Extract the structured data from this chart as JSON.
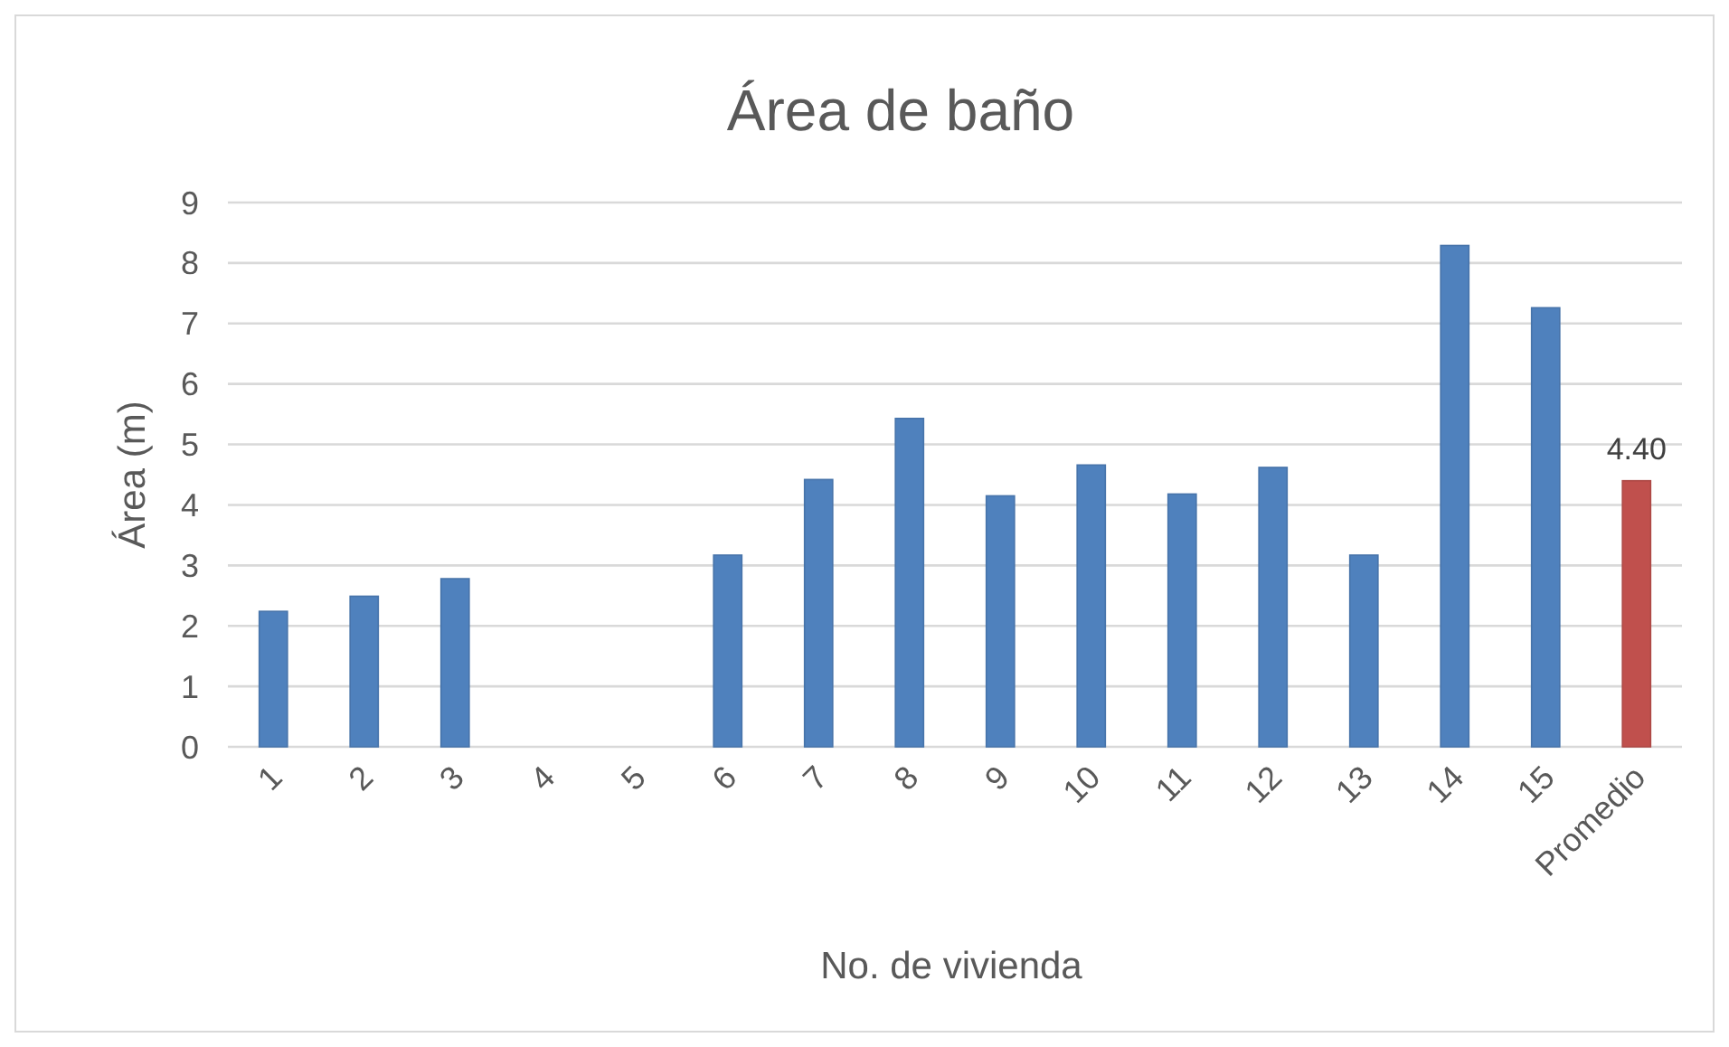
{
  "chart_data": {
    "type": "bar",
    "title": "Área de baño",
    "xlabel": "No. de vivienda",
    "ylabel": "Área (m)",
    "categories": [
      "1",
      "2",
      "3",
      "4",
      "5",
      "6",
      "7",
      "8",
      "9",
      "10",
      "11",
      "12",
      "13",
      "14",
      "15",
      "Promedio"
    ],
    "values": [
      2.24,
      2.49,
      2.78,
      null,
      null,
      3.17,
      4.42,
      5.43,
      4.15,
      4.66,
      4.18,
      4.62,
      3.17,
      8.29,
      7.26,
      4.4
    ],
    "colors": [
      "#4f81bd",
      "#4f81bd",
      "#4f81bd",
      null,
      null,
      "#4f81bd",
      "#4f81bd",
      "#4f81bd",
      "#4f81bd",
      "#4f81bd",
      "#4f81bd",
      "#4f81bd",
      "#4f81bd",
      "#4f81bd",
      "#4f81bd",
      "#c0504d"
    ],
    "value_labels": [
      null,
      null,
      null,
      null,
      null,
      null,
      null,
      null,
      null,
      null,
      null,
      null,
      null,
      null,
      null,
      "4.40"
    ],
    "ylim": [
      0,
      9
    ],
    "yticks": [
      0,
      1,
      2,
      3,
      4,
      5,
      6,
      7,
      8,
      9
    ],
    "grid": "y"
  }
}
